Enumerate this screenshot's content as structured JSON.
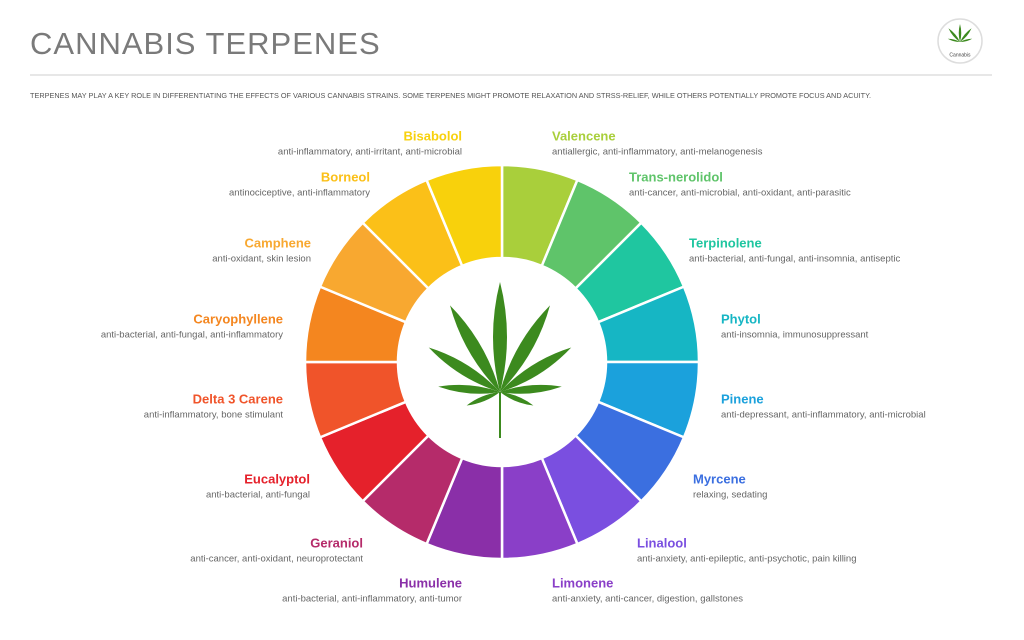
{
  "header": {
    "title": "CANNABIS TERPENES",
    "subtitle": "TERPENES MAY PLAY A KEY ROLE IN DIFFERENTIATING THE EFFECTS OF VARIOUS CANNABIS STRAINS. SOME TERPENES MIGHT PROMOTE RELAXATION AND STRSS-RELIEF, WHILE OTHERS POTENTIALLY PROMOTE FOCUS AND ACUITY.",
    "logo_text": "Cannabis"
  },
  "terpenes": [
    {
      "name": "Valencene",
      "effects": "antiallergic, anti-inflammatory, anti-melanogenesis",
      "color": "#a9cf3b"
    },
    {
      "name": "Trans-nerolidol",
      "effects": "anti-cancer, anti-microbial, anti-oxidant, anti-parasitic",
      "color": "#5fc46a"
    },
    {
      "name": "Terpinolene",
      "effects": "anti-bacterial, anti-fungal, anti-insomnia, antiseptic",
      "color": "#1fc6a0"
    },
    {
      "name": "Phytol",
      "effects": "anti-insomnia, immunosuppressant",
      "color": "#16b6c4"
    },
    {
      "name": "Pinene",
      "effects": "anti-depressant, anti-inflammatory, anti-microbial",
      "color": "#1ba1dc"
    },
    {
      "name": "Myrcene",
      "effects": "relaxing, sedating",
      "color": "#3b6fe0"
    },
    {
      "name": "Linalool",
      "effects": "anti-anxiety, anti-epileptic, anti-psychotic, pain killing",
      "color": "#7a4fe0"
    },
    {
      "name": "Limonene",
      "effects": "anti-anxiety, anti-cancer, digestion, gallstones",
      "color": "#8a3fc8"
    },
    {
      "name": "Humulene",
      "effects": "anti-bacterial, anti-inflammatory, anti-tumor",
      "color": "#8a2fa8"
    },
    {
      "name": "Geraniol",
      "effects": "anti-cancer, anti-oxidant, neuroprotectant",
      "color": "#b52b6a"
    },
    {
      "name": "Eucalyptol",
      "effects": "anti-bacterial, anti-fungal",
      "color": "#e5212b"
    },
    {
      "name": "Delta 3 Carene",
      "effects": "anti-inflammatory, bone stimulant",
      "color": "#f0542a"
    },
    {
      "name": "Caryophyllene",
      "effects": "anti-bacterial, anti-fungal, anti-inflammatory",
      "color": "#f4861f"
    },
    {
      "name": "Camphene",
      "effects": "anti-oxidant, skin lesion",
      "color": "#f8a830"
    },
    {
      "name": "Borneol",
      "effects": "antinociceptive, anti-inflammatory",
      "color": "#fbc018"
    },
    {
      "name": "Bisabolol",
      "effects": "anti-inflammatory, anti-irritant, anti-microbial",
      "color": "#f8d10c"
    }
  ]
}
